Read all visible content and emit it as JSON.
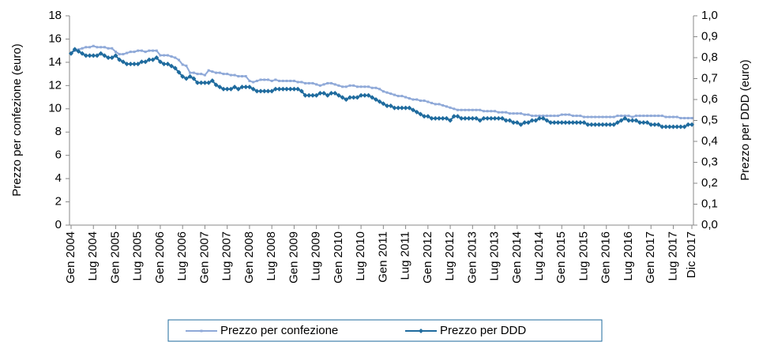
{
  "chart_data": {
    "type": "line",
    "ylabel": "Prezzo per confezione (euro)",
    "y2label": "Prezzo per DDD (euro)",
    "categories": [
      "Gen 2004",
      null,
      null,
      null,
      null,
      null,
      "Lug 2004",
      null,
      null,
      null,
      null,
      null,
      "Gen 2005",
      null,
      null,
      null,
      null,
      null,
      "Lug 2005",
      null,
      null,
      null,
      null,
      null,
      "Gen 2006",
      null,
      null,
      null,
      null,
      null,
      "Lug 2006",
      null,
      null,
      null,
      null,
      null,
      "Gen 2007",
      null,
      null,
      null,
      null,
      null,
      "Lug 2007",
      null,
      null,
      null,
      null,
      null,
      "Gen 2008",
      null,
      null,
      null,
      null,
      null,
      "Lug 2008",
      null,
      null,
      null,
      null,
      null,
      "Gen 2009",
      null,
      null,
      null,
      null,
      null,
      "Lug 2009",
      null,
      null,
      null,
      null,
      null,
      "Gen 2010",
      null,
      null,
      null,
      null,
      null,
      "Lug 2010",
      null,
      null,
      null,
      null,
      null,
      "Gen 2011",
      null,
      null,
      null,
      null,
      null,
      "Lug 2011",
      null,
      null,
      null,
      null,
      null,
      "Gen 2012",
      null,
      null,
      null,
      null,
      null,
      "Lug 2012",
      null,
      null,
      null,
      null,
      null,
      "Gen 2013",
      null,
      null,
      null,
      null,
      null,
      "Lug 2013",
      null,
      null,
      null,
      null,
      null,
      "Gen 2014",
      null,
      null,
      null,
      null,
      null,
      "Lug 2014",
      null,
      null,
      null,
      null,
      null,
      "Gen 2015",
      null,
      null,
      null,
      null,
      null,
      "Lug 2015",
      null,
      null,
      null,
      null,
      null,
      "Gen 2016",
      null,
      null,
      null,
      null,
      null,
      "Lug 2016",
      null,
      null,
      null,
      null,
      null,
      "Gen 2017",
      null,
      null,
      null,
      null,
      null,
      "Lug 2017",
      null,
      null,
      null,
      null,
      "Dic 2017"
    ],
    "series": [
      {
        "name": "Prezzo per confezione",
        "color": "#8fa9d8",
        "marker": "square",
        "values": [
          14.8,
          15.0,
          15.1,
          15.2,
          15.3,
          15.3,
          15.4,
          15.3,
          15.3,
          15.3,
          15.2,
          15.2,
          14.9,
          14.7,
          14.7,
          14.8,
          14.9,
          14.9,
          15.0,
          15.0,
          14.9,
          15.0,
          15.0,
          15.0,
          14.6,
          14.6,
          14.6,
          14.5,
          14.4,
          14.2,
          13.8,
          13.7,
          13.1,
          13.1,
          13.0,
          13.0,
          12.9,
          13.3,
          13.2,
          13.1,
          13.1,
          13.0,
          13.0,
          12.9,
          12.9,
          12.8,
          12.8,
          12.8,
          12.4,
          12.3,
          12.4,
          12.5,
          12.5,
          12.5,
          12.4,
          12.5,
          12.4,
          12.4,
          12.4,
          12.4,
          12.4,
          12.3,
          12.3,
          12.2,
          12.2,
          12.2,
          12.1,
          12.0,
          12.1,
          12.2,
          12.2,
          12.1,
          12.0,
          11.9,
          11.9,
          12.0,
          12.0,
          11.9,
          11.9,
          11.9,
          11.9,
          11.8,
          11.8,
          11.7,
          11.5,
          11.4,
          11.3,
          11.2,
          11.1,
          11.1,
          11.0,
          10.9,
          10.8,
          10.8,
          10.7,
          10.7,
          10.6,
          10.5,
          10.4,
          10.4,
          10.3,
          10.2,
          10.1,
          10.0,
          9.9,
          9.9,
          9.9,
          9.9,
          9.9,
          9.9,
          9.9,
          9.8,
          9.8,
          9.8,
          9.8,
          9.7,
          9.7,
          9.7,
          9.6,
          9.6,
          9.6,
          9.6,
          9.5,
          9.5,
          9.4,
          9.4,
          9.4,
          9.4,
          9.4,
          9.4,
          9.4,
          9.4,
          9.5,
          9.5,
          9.5,
          9.4,
          9.4,
          9.4,
          9.3,
          9.3,
          9.3,
          9.3,
          9.3,
          9.3,
          9.3,
          9.3,
          9.3,
          9.4,
          9.4,
          9.4,
          9.4,
          9.3,
          9.4,
          9.4,
          9.4,
          9.4,
          9.4,
          9.4,
          9.4,
          9.4,
          9.3,
          9.3,
          9.3,
          9.3,
          9.2,
          9.2,
          9.2,
          9.2
        ]
      },
      {
        "name": "Prezzo per DDD",
        "color": "#1f6b9e",
        "marker": "diamond",
        "axis": "y2",
        "values": [
          0.82,
          0.84,
          0.83,
          0.82,
          0.81,
          0.81,
          0.81,
          0.81,
          0.82,
          0.81,
          0.8,
          0.8,
          0.81,
          0.79,
          0.78,
          0.77,
          0.77,
          0.77,
          0.77,
          0.78,
          0.78,
          0.79,
          0.79,
          0.8,
          0.78,
          0.77,
          0.77,
          0.76,
          0.75,
          0.73,
          0.71,
          0.7,
          0.71,
          0.7,
          0.68,
          0.68,
          0.68,
          0.68,
          0.69,
          0.67,
          0.66,
          0.65,
          0.65,
          0.65,
          0.66,
          0.65,
          0.66,
          0.66,
          0.66,
          0.65,
          0.64,
          0.64,
          0.64,
          0.64,
          0.64,
          0.65,
          0.65,
          0.65,
          0.65,
          0.65,
          0.65,
          0.65,
          0.64,
          0.62,
          0.62,
          0.62,
          0.62,
          0.63,
          0.63,
          0.62,
          0.63,
          0.63,
          0.62,
          0.61,
          0.6,
          0.61,
          0.61,
          0.61,
          0.62,
          0.62,
          0.62,
          0.61,
          0.6,
          0.59,
          0.58,
          0.57,
          0.57,
          0.56,
          0.56,
          0.56,
          0.56,
          0.56,
          0.55,
          0.54,
          0.53,
          0.52,
          0.52,
          0.51,
          0.51,
          0.51,
          0.51,
          0.51,
          0.5,
          0.52,
          0.52,
          0.51,
          0.51,
          0.51,
          0.51,
          0.51,
          0.5,
          0.51,
          0.51,
          0.51,
          0.51,
          0.51,
          0.51,
          0.5,
          0.5,
          0.49,
          0.49,
          0.48,
          0.49,
          0.49,
          0.5,
          0.5,
          0.51,
          0.51,
          0.5,
          0.49,
          0.49,
          0.49,
          0.49,
          0.49,
          0.49,
          0.49,
          0.49,
          0.49,
          0.49,
          0.48,
          0.48,
          0.48,
          0.48,
          0.48,
          0.48,
          0.48,
          0.48,
          0.49,
          0.5,
          0.51,
          0.5,
          0.5,
          0.5,
          0.49,
          0.49,
          0.49,
          0.48,
          0.48,
          0.48,
          0.47,
          0.47,
          0.47,
          0.47,
          0.47,
          0.47,
          0.47,
          0.48,
          0.48
        ]
      }
    ],
    "ylim": [
      0,
      18
    ],
    "yticks": [
      0,
      2,
      4,
      6,
      8,
      10,
      12,
      14,
      16,
      18
    ],
    "y2lim": [
      0,
      1
    ],
    "y2ticks": [
      {
        "value": 0,
        "label": "0,0"
      },
      {
        "value": 0.1,
        "label": "0,1"
      },
      {
        "value": 0.2,
        "label": "0,2"
      },
      {
        "value": 0.3,
        "label": "0,3"
      },
      {
        "value": 0.4,
        "label": "0,4"
      },
      {
        "value": 0.5,
        "label": "0,5"
      },
      {
        "value": 0.6,
        "label": "0,6"
      },
      {
        "value": 0.7,
        "label": "0,7"
      },
      {
        "value": 0.8,
        "label": "0,8"
      },
      {
        "value": 0.9,
        "label": "0,9"
      },
      {
        "value": 1,
        "label": "1,0"
      }
    ],
    "grid": false,
    "legend": "bottom"
  }
}
